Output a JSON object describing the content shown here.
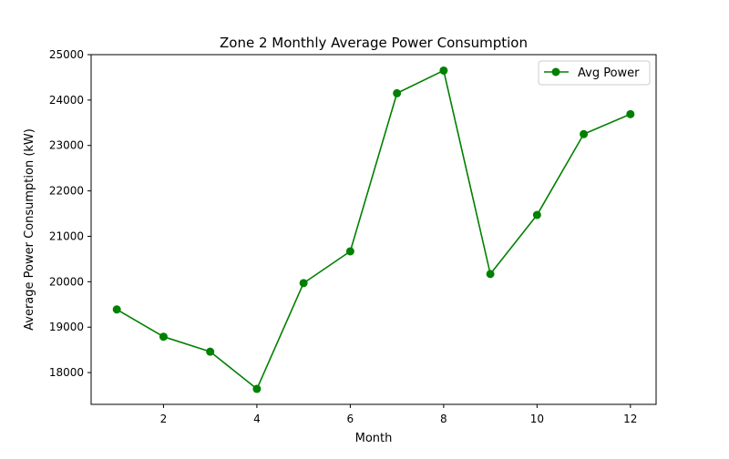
{
  "chart_data": {
    "type": "line",
    "title": "Zone 2 Monthly Average Power Consumption",
    "xlabel": "Month",
    "ylabel": "Average Power Consumption (kW)",
    "x": [
      1,
      2,
      3,
      4,
      5,
      6,
      7,
      8,
      9,
      10,
      11,
      12
    ],
    "series": [
      {
        "name": "Avg Power",
        "color": "#008000",
        "marker": "circle",
        "values": [
          19390,
          18790,
          18460,
          17640,
          19970,
          20670,
          24150,
          24650,
          20170,
          21470,
          23250,
          23690
        ]
      }
    ],
    "xlim": [
      0.45,
      12.55
    ],
    "ylim": [
      17300,
      25000
    ],
    "xticks": [
      2,
      4,
      6,
      8,
      10,
      12
    ],
    "yticks": [
      18000,
      19000,
      20000,
      21000,
      22000,
      23000,
      24000,
      25000
    ],
    "grid": false,
    "legend_position": "top-right"
  }
}
